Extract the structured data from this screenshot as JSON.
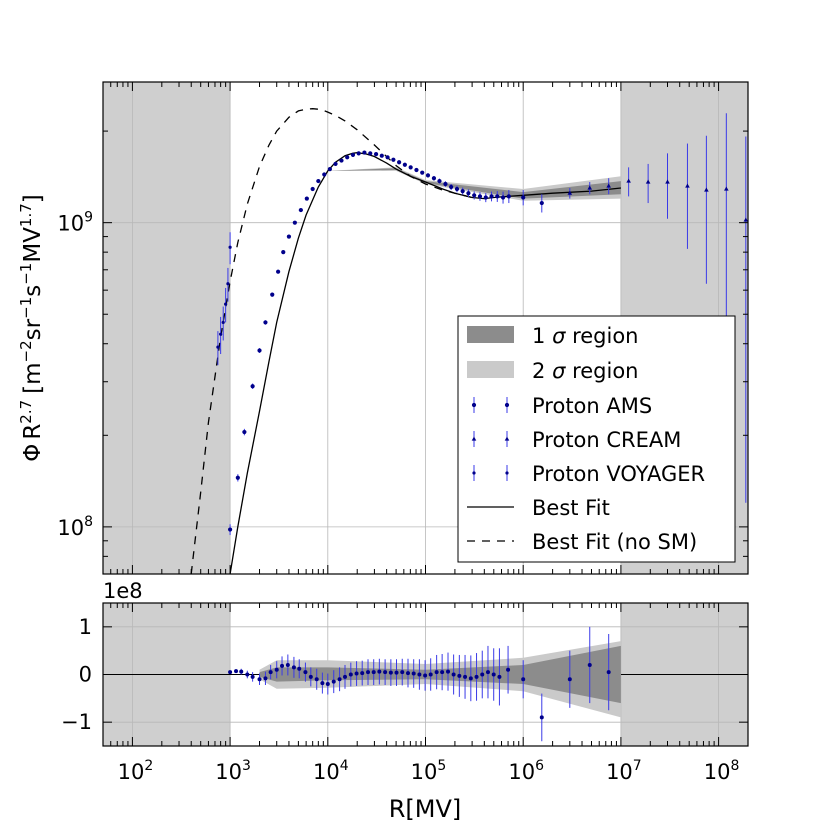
{
  "colors": {
    "shade_outside": "#cfcfcf",
    "band_1sigma": "#8c8c8c",
    "band_2sigma": "#cacaca",
    "points": "#00008b",
    "errorbars": "#3a3ae8",
    "fit_line": "#000000",
    "grid": "#b8b8b8"
  },
  "chart_data": [
    {
      "type": "line",
      "panel": "main",
      "title": "",
      "xlabel": "R[MV]",
      "ylabel": "ΦR^{2.7} [m^{-2}sr^{-1}s^{-1}MV^{1.7}]",
      "ylabel_parts": {
        "phi": "Φ",
        "base": "R",
        "exp": "2.7",
        "units": "[m",
        "u1": "−2",
        "sr": "sr",
        "u2": "−1",
        "s": "s",
        "u3": "−1",
        "mv": "MV",
        "u4": "1.7",
        "close": "]"
      },
      "x_scale": "log",
      "y_scale": "log",
      "xlim": [
        50,
        200000000
      ],
      "ylim": [
        70000000,
        2900000000
      ],
      "y_ticks": [
        {
          "v": 100000000,
          "base": "10",
          "exp": "8"
        },
        {
          "v": 1000000000,
          "base": "10",
          "exp": "9"
        }
      ],
      "shaded_outside_fit_range": [
        [
          50,
          1000
        ],
        [
          10000000,
          200000000
        ]
      ],
      "legend_position": "center-right",
      "legend": {
        "band1": {
          "num": "1",
          "sym": "σ",
          "txt": "region"
        },
        "band2": {
          "num": "2",
          "sym": "σ",
          "txt": "region"
        },
        "ams": "Proton AMS",
        "cream": "Proton CREAM",
        "voyager": "Proton VOYAGER",
        "fit": "Best Fit",
        "fit_nosm": "Best Fit (no SM)"
      },
      "series": [
        {
          "name": "Best Fit",
          "style": "solid",
          "x": [
            1000,
            1200,
            1500,
            2000,
            2500,
            3000,
            4000,
            5000,
            6000,
            8000,
            10000,
            12000,
            15000,
            18000,
            20000,
            25000,
            30000,
            40000,
            50000,
            70000,
            100000,
            150000,
            200000,
            300000,
            400000,
            500000,
            700000,
            1000000,
            2000000,
            5000000,
            10000000
          ],
          "y": [
            70000000,
            100000000,
            150000000,
            240000000,
            350000000,
            470000000,
            690000000,
            890000000,
            1060000000,
            1310000000,
            1480000000,
            1580000000,
            1660000000,
            1690000000,
            1700000000,
            1680000000,
            1650000000,
            1570000000,
            1500000000,
            1420000000,
            1360000000,
            1290000000,
            1250000000,
            1210000000,
            1200000000,
            1210000000,
            1220000000,
            1230000000,
            1250000000,
            1270000000,
            1300000000
          ]
        },
        {
          "name": "Best Fit (no SM)",
          "style": "dashed",
          "x": [
            400,
            500,
            600,
            800,
            1000,
            1200,
            1500,
            2000,
            2500,
            3000,
            4000,
            5000,
            6000,
            7000,
            8000,
            9000,
            10000,
            12000,
            15000,
            20000,
            30000,
            50000,
            70000,
            100000,
            150000,
            200000,
            300000
          ],
          "y": [
            70000000,
            130000000,
            220000000,
            420000000,
            640000000,
            860000000,
            1150000000,
            1530000000,
            1800000000,
            2000000000,
            2220000000,
            2330000000,
            2360000000,
            2370000000,
            2360000000,
            2340000000,
            2310000000,
            2250000000,
            2160000000,
            2020000000,
            1800000000,
            1540000000,
            1420000000,
            1340000000,
            1280000000,
            1250000000,
            1210000000
          ]
        },
        {
          "name": "1 σ region",
          "type": "band",
          "x": [
            10000,
            50000,
            100000,
            1000000,
            10000000
          ],
          "low": [
            1480000000,
            1490000000,
            1350000000,
            1200000000,
            1240000000
          ],
          "high": [
            1480000000,
            1510000000,
            1370000000,
            1260000000,
            1370000000
          ]
        },
        {
          "name": "2 σ region",
          "type": "band",
          "x": [
            10000,
            50000,
            100000,
            1000000,
            10000000
          ],
          "low": [
            1480000000,
            1480000000,
            1340000000,
            1180000000,
            1200000000
          ],
          "high": [
            1480000000,
            1520000000,
            1380000000,
            1290000000,
            1420000000
          ]
        },
        {
          "name": "Proton AMS",
          "type": "scatter",
          "marker": "circle",
          "x": [
            1000,
            1200,
            1400,
            1700,
            2000,
            2300,
            2700,
            3100,
            3500,
            4000,
            4600,
            5300,
            6100,
            7000,
            8000,
            9200,
            10500,
            12000,
            13800,
            15800,
            18100,
            20700,
            23700,
            27200,
            31200,
            35700,
            40900,
            46900,
            53700,
            61500,
            70500,
            80800,
            92600,
            106000,
            122000,
            139000,
            160000,
            183000,
            210000,
            240000,
            275000,
            315000,
            361000,
            414000,
            474000,
            543000,
            622000,
            713000,
            1000000,
            1550000
          ],
          "y": [
            98000000,
            145000000,
            205000000,
            290000000,
            380000000,
            470000000,
            580000000,
            690000000,
            800000000,
            900000000,
            1000000000,
            1100000000,
            1200000000,
            1290000000,
            1370000000,
            1440000000,
            1500000000,
            1560000000,
            1600000000,
            1640000000,
            1670000000,
            1690000000,
            1700000000,
            1690000000,
            1680000000,
            1660000000,
            1640000000,
            1610000000,
            1580000000,
            1550000000,
            1520000000,
            1490000000,
            1460000000,
            1430000000,
            1400000000,
            1370000000,
            1340000000,
            1310000000,
            1290000000,
            1270000000,
            1250000000,
            1230000000,
            1220000000,
            1210000000,
            1220000000,
            1220000000,
            1210000000,
            1220000000,
            1210000000,
            1160000000
          ],
          "err": [
            4000000,
            4000000,
            5000000,
            6000000,
            7000000,
            8000000,
            9000000,
            10000000,
            10000000,
            10000000,
            10000000,
            11000000,
            11000000,
            12000000,
            12000000,
            12000000,
            13000000,
            13000000,
            13000000,
            13000000,
            13000000,
            13000000,
            13000000,
            13000000,
            13000000,
            13000000,
            14000000,
            14000000,
            15000000,
            16000000,
            17000000,
            18000000,
            20000000,
            22000000,
            24000000,
            26000000,
            28000000,
            30000000,
            32000000,
            34000000,
            36000000,
            38000000,
            40000000,
            42000000,
            45000000,
            50000000,
            55000000,
            60000000,
            70000000,
            80000000
          ]
        },
        {
          "name": "Proton CREAM",
          "type": "scatter",
          "marker": "triangle",
          "x": [
            3000000,
            4800000,
            7500000,
            12000000,
            19000000,
            30000000,
            48000000,
            75000000,
            120000000,
            190000000
          ],
          "y": [
            1250000000,
            1300000000,
            1320000000,
            1370000000,
            1360000000,
            1360000000,
            1320000000,
            1280000000,
            1290000000,
            1020000000
          ],
          "err": [
            50000000,
            60000000,
            80000000,
            150000000,
            200000000,
            330000000,
            500000000,
            650000000,
            1000000000,
            900000000
          ]
        },
        {
          "name": "Proton VOYAGER",
          "type": "scatter",
          "marker": "dot",
          "x": [
            750,
            800,
            850,
            900,
            950,
            1000
          ],
          "y": [
            390000000,
            430000000,
            470000000,
            540000000,
            630000000,
            830000000
          ],
          "err": [
            50000000,
            60000000,
            60000000,
            70000000,
            80000000,
            100000000
          ]
        }
      ]
    },
    {
      "type": "scatter",
      "panel": "residuals",
      "xlabel": "R[MV]",
      "ylabel": "",
      "multiplier_label": "1e8",
      "x_scale": "log",
      "xlim": [
        50,
        200000000
      ],
      "ylim": [
        -1.5,
        1.5
      ],
      "y_ticks": [
        {
          "v": 1,
          "label": "1"
        },
        {
          "v": 0,
          "label": "0"
        },
        {
          "v": -1,
          "label": "−1"
        }
      ],
      "x_ticks": [
        {
          "v": 100,
          "base": "10",
          "exp": "2"
        },
        {
          "v": 1000,
          "base": "10",
          "exp": "3"
        },
        {
          "v": 10000,
          "base": "10",
          "exp": "4"
        },
        {
          "v": 100000,
          "base": "10",
          "exp": "5"
        },
        {
          "v": 1000000,
          "base": "10",
          "exp": "6"
        },
        {
          "v": 10000000,
          "base": "10",
          "exp": "7"
        },
        {
          "v": 100000000,
          "base": "10",
          "exp": "8"
        }
      ],
      "band_1sigma": {
        "x": [
          2000,
          3000,
          10000,
          100000,
          1000000,
          10000000
        ],
        "low": [
          -0.05,
          -0.15,
          -0.12,
          -0.1,
          -0.2,
          -0.6
        ],
        "high": [
          0.05,
          0.15,
          0.15,
          0.1,
          0.2,
          0.6
        ]
      },
      "band_2sigma": {
        "x": [
          2000,
          3000,
          10000,
          100000,
          1000000,
          10000000
        ],
        "low": [
          -0.1,
          -0.3,
          -0.28,
          -0.2,
          -0.35,
          -0.9
        ],
        "high": [
          0.1,
          0.3,
          0.3,
          0.22,
          0.35,
          0.7
        ]
      },
      "points": {
        "x": [
          1000,
          1150,
          1300,
          1500,
          1700,
          2000,
          2300,
          2600,
          3000,
          3400,
          3900,
          4500,
          5100,
          5900,
          6700,
          7700,
          8800,
          10000,
          11500,
          13200,
          15000,
          17200,
          19700,
          22500,
          25800,
          29500,
          33700,
          38600,
          44200,
          50500,
          57800,
          66200,
          75700,
          86600,
          99100,
          113000,
          130000,
          148000,
          170000,
          194000,
          222000,
          254000,
          291000,
          333000,
          381000,
          436000,
          499000,
          571000,
          700000,
          1000000,
          1550000,
          3000000,
          4800000,
          7500000
        ],
        "y": [
          0.05,
          0.07,
          0.06,
          0.0,
          -0.05,
          -0.1,
          -0.08,
          0.05,
          0.1,
          0.18,
          0.2,
          0.15,
          0.12,
          0.05,
          -0.05,
          -0.1,
          -0.18,
          -0.2,
          -0.15,
          -0.1,
          -0.05,
          0.0,
          0.02,
          0.03,
          0.05,
          0.05,
          0.06,
          0.05,
          0.04,
          0.04,
          0.05,
          0.03,
          0.02,
          0.0,
          -0.02,
          0.0,
          0.05,
          0.05,
          0.06,
          0.0,
          -0.03,
          -0.05,
          -0.08,
          -0.05,
          0.0,
          0.05,
          0.0,
          -0.05,
          0.1,
          -0.1,
          -0.9,
          -0.1,
          0.2,
          0.05
        ],
        "err": [
          0.02,
          0.04,
          0.06,
          0.08,
          0.1,
          0.12,
          0.14,
          0.15,
          0.18,
          0.2,
          0.22,
          0.22,
          0.2,
          0.2,
          0.2,
          0.22,
          0.22,
          0.22,
          0.24,
          0.25,
          0.25,
          0.25,
          0.26,
          0.26,
          0.27,
          0.27,
          0.27,
          0.27,
          0.28,
          0.28,
          0.28,
          0.3,
          0.3,
          0.32,
          0.32,
          0.34,
          0.36,
          0.38,
          0.4,
          0.42,
          0.44,
          0.46,
          0.48,
          0.5,
          0.5,
          0.55,
          0.55,
          0.6,
          0.5,
          0.4,
          0.5,
          0.6,
          0.8,
          0.8
        ]
      }
    }
  ]
}
